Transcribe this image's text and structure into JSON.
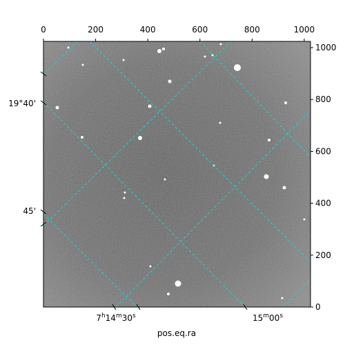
{
  "chart_data": {
    "type": "image",
    "x_label": "pos.eq.ra",
    "xlim": [
      0,
      1024
    ],
    "ylim": [
      0,
      1024
    ],
    "xticks": [
      0,
      200,
      400,
      600,
      800,
      1000
    ],
    "yticks": [
      0,
      200,
      400,
      600,
      800,
      1000
    ],
    "ra_labels": [
      "7h14m30s",
      "15m00s"
    ],
    "dec_labels": [
      "19°40'",
      "45'"
    ]
  }
}
